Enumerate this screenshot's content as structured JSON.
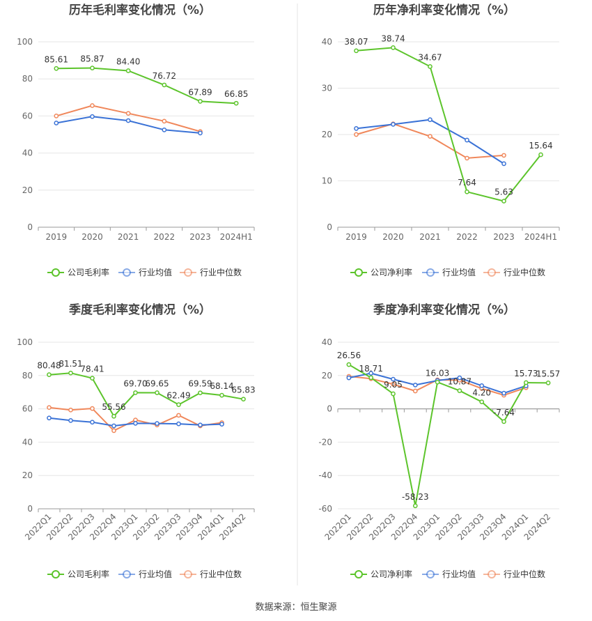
{
  "source_label": "数据来源：恒生聚源",
  "colors": {
    "company": "#5cc42b",
    "industry_avg": "#3a72d6",
    "industry_median": "#f0875a",
    "axis": "#666666",
    "grid": "#e6e6e6",
    "label": "#333333",
    "title": "#444444"
  },
  "chart_data": [
    {
      "type": "line",
      "title": "历年毛利率变化情况（%）",
      "categories": [
        "2019",
        "2020",
        "2021",
        "2022",
        "2023",
        "2024H1"
      ],
      "ylim": [
        0,
        100
      ],
      "yticks": [
        0,
        20,
        40,
        60,
        80,
        100
      ],
      "grid": true,
      "legend_position": "bottom-center",
      "rotate_x_labels": false,
      "series": [
        {
          "name": "公司毛利率",
          "key": "company",
          "values": [
            85.61,
            85.87,
            84.4,
            76.72,
            67.89,
            66.85
          ],
          "labels": [
            "85.61",
            "85.87",
            "84.40",
            "76.72",
            "67.89",
            "66.85"
          ]
        },
        {
          "name": "行业均值",
          "key": "industry_avg",
          "values": [
            56.2,
            59.7,
            57.5,
            52.5,
            50.8,
            null
          ]
        },
        {
          "name": "行业中位数",
          "key": "industry_median",
          "values": [
            60.0,
            65.6,
            61.4,
            57.2,
            51.6,
            null
          ]
        }
      ]
    },
    {
      "type": "line",
      "title": "历年净利率变化情况（%）",
      "categories": [
        "2019",
        "2020",
        "2021",
        "2022",
        "2023",
        "2024H1"
      ],
      "ylim": [
        0,
        40
      ],
      "yticks": [
        0,
        10,
        20,
        30,
        40
      ],
      "grid": true,
      "legend_position": "bottom-center",
      "rotate_x_labels": false,
      "series": [
        {
          "name": "公司净利率",
          "key": "company",
          "values": [
            38.07,
            38.74,
            34.67,
            7.64,
            5.63,
            15.64
          ],
          "labels": [
            "38.07",
            "38.74",
            "34.67",
            "7.64",
            "5.63",
            "15.64"
          ]
        },
        {
          "name": "行业均值",
          "key": "industry_avg",
          "values": [
            21.3,
            22.2,
            23.2,
            18.8,
            13.7,
            null
          ]
        },
        {
          "name": "行业中位数",
          "key": "industry_median",
          "values": [
            20.0,
            22.3,
            19.6,
            14.9,
            15.5,
            null
          ]
        }
      ]
    },
    {
      "type": "line",
      "title": "季度毛利率变化情况（%）",
      "categories": [
        "2022Q1",
        "2022Q2",
        "2022Q3",
        "2022Q4",
        "2023Q1",
        "2023Q2",
        "2023Q3",
        "2023Q4",
        "2024Q1",
        "2024Q2"
      ],
      "ylim": [
        0,
        100
      ],
      "yticks": [
        0,
        20,
        40,
        60,
        80,
        100
      ],
      "grid": true,
      "legend_position": "bottom-center",
      "rotate_x_labels": true,
      "series": [
        {
          "name": "公司毛利率",
          "key": "company",
          "values": [
            80.48,
            81.51,
            78.41,
            55.56,
            69.7,
            69.65,
            62.49,
            69.59,
            68.14,
            65.83
          ],
          "labels": [
            "80.48",
            "81.51",
            "78.41",
            "55.56",
            "69.70",
            "69.65",
            "62.49",
            "69.59",
            "68.14",
            "65.83"
          ]
        },
        {
          "name": "行业均值",
          "key": "industry_avg",
          "values": [
            54.5,
            53.0,
            52.0,
            49.8,
            51.3,
            51.2,
            51.0,
            50.3,
            50.8,
            null
          ]
        },
        {
          "name": "行业中位数",
          "key": "industry_median",
          "values": [
            60.8,
            59.3,
            60.2,
            46.9,
            53.3,
            50.3,
            56.1,
            49.8,
            51.7,
            null
          ]
        }
      ]
    },
    {
      "type": "line",
      "title": "季度净利率变化情况（%）",
      "categories": [
        "2022Q1",
        "2022Q2",
        "2022Q3",
        "2022Q4",
        "2023Q1",
        "2023Q2",
        "2023Q3",
        "2023Q4",
        "2024Q1",
        "2024Q2"
      ],
      "ylim": [
        -60,
        40
      ],
      "yticks": [
        -60,
        -40,
        -20,
        0,
        20,
        40
      ],
      "grid": true,
      "legend_position": "bottom-center",
      "rotate_x_labels": true,
      "series": [
        {
          "name": "公司净利率",
          "key": "company",
          "values": [
            26.56,
            18.71,
            9.05,
            -58.23,
            16.03,
            10.87,
            4.2,
            -7.64,
            15.73,
            15.57
          ],
          "labels": [
            "26.56",
            "18.71",
            "9.05",
            "-58.23",
            "16.03",
            "10.87",
            "4.20",
            "-7.64",
            "15.73",
            "15.57"
          ]
        },
        {
          "name": "行业均值",
          "key": "industry_avg",
          "values": [
            18.6,
            21.4,
            17.8,
            14.3,
            17.0,
            18.6,
            13.9,
            9.4,
            13.8,
            null
          ]
        },
        {
          "name": "行业中位数",
          "key": "industry_median",
          "values": [
            19.5,
            18.1,
            14.8,
            10.7,
            17.4,
            17.2,
            12.2,
            8.2,
            12.7,
            null
          ]
        }
      ]
    }
  ]
}
